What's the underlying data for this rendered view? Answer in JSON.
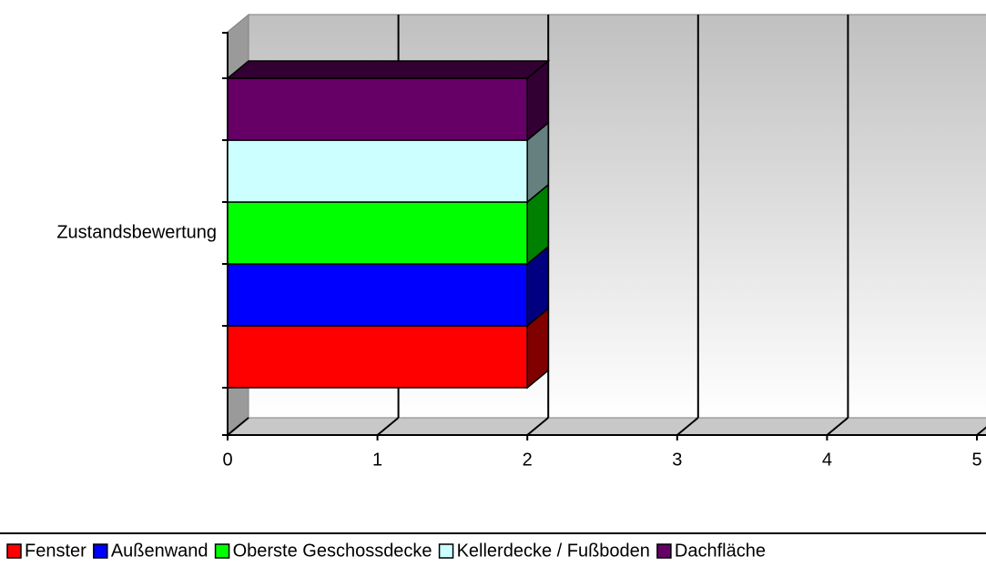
{
  "chart_data": {
    "type": "bar",
    "orientation": "horizontal",
    "three_d": true,
    "categories": [
      "Zustandsbewertung"
    ],
    "series": [
      {
        "name": "Fenster",
        "color": "#ff0000",
        "values": [
          2
        ]
      },
      {
        "name": "Außenwand",
        "color": "#0000ff",
        "values": [
          2
        ]
      },
      {
        "name": "Oberste Geschossdecke",
        "color": "#00ff00",
        "values": [
          2
        ]
      },
      {
        "name": "Kellerdecke / Fußboden",
        "color": "#ccffff",
        "values": [
          2
        ]
      },
      {
        "name": "Dachfläche",
        "color": "#660066",
        "values": [
          2
        ]
      }
    ],
    "xlim": [
      0,
      5
    ],
    "xticks": [
      0,
      1,
      2,
      3,
      4,
      5
    ],
    "grid": true,
    "legend": "bottom"
  }
}
